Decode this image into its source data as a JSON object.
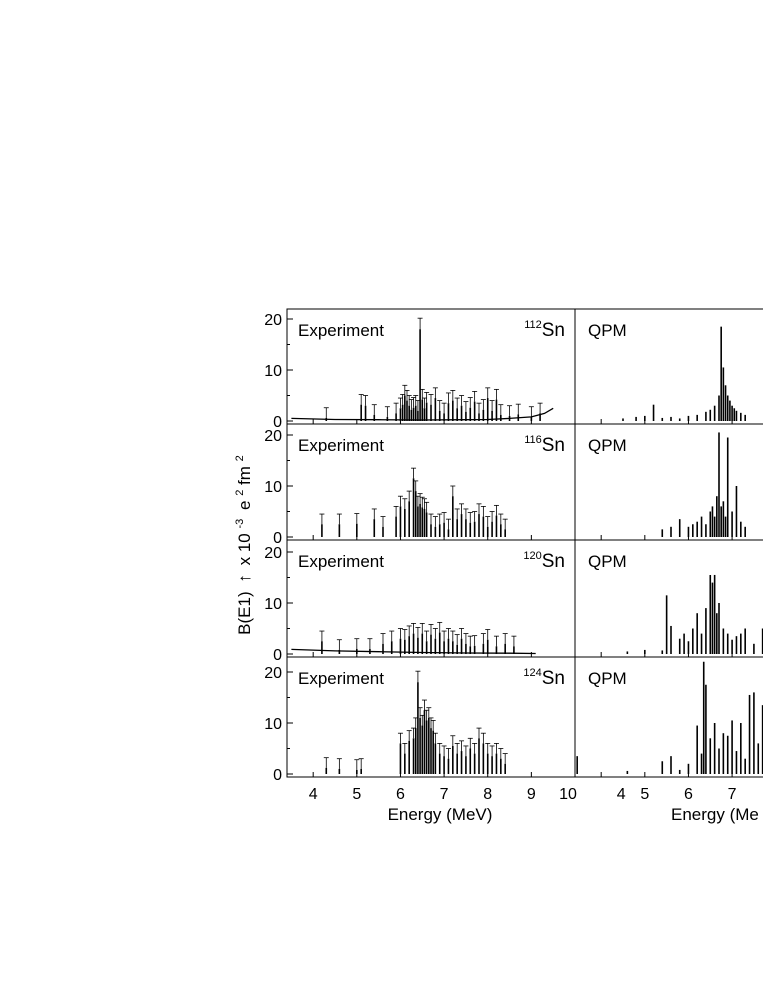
{
  "figure": {
    "ylabel": "B(E1)",
    "ylabel_arrow": "↑",
    "ylabel_tail": "x 10",
    "ylabel_exp": "-3",
    "ylabel_unit1": "e",
    "ylabel_unit1_exp": "2",
    "ylabel_unit2": "fm",
    "ylabel_unit2_exp": "2",
    "left_xlabel": "Energy (MeV)",
    "right_xlabel": "Energy (Me"
  },
  "chart_data": [
    {
      "type": "bar",
      "panel": "experiment",
      "nucleus_mass": "112",
      "nucleus_symbol": "Sn",
      "label": "Experiment",
      "xlim": [
        3.4,
        10.0
      ],
      "ylim": [
        0,
        22
      ],
      "xticks": [
        "4",
        "5",
        "6",
        "7",
        "8",
        "9",
        "10"
      ],
      "yticks": [
        "0",
        "10",
        "20"
      ],
      "x": [
        4.3,
        5.1,
        5.2,
        5.4,
        5.7,
        5.9,
        6.0,
        6.05,
        6.1,
        6.15,
        6.2,
        6.25,
        6.3,
        6.35,
        6.4,
        6.45,
        6.5,
        6.55,
        6.6,
        6.7,
        6.8,
        6.9,
        7.0,
        7.1,
        7.2,
        7.3,
        7.4,
        7.5,
        7.6,
        7.7,
        7.8,
        7.9,
        8.0,
        8.1,
        8.2,
        8.3,
        8.5,
        8.7,
        9.0,
        9.2
      ],
      "values": [
        0.6,
        3.2,
        3.0,
        1.2,
        0.8,
        1.5,
        2.5,
        3.2,
        5.0,
        4.0,
        3.0,
        2.2,
        2.6,
        3.0,
        2.0,
        18.0,
        4.2,
        2.5,
        3.6,
        3.2,
        4.5,
        2.0,
        1.5,
        3.5,
        4.0,
        2.5,
        3.0,
        1.8,
        2.6,
        3.8,
        1.5,
        2.2,
        4.5,
        2.0,
        4.2,
        1.2,
        1.0,
        1.3,
        0.8,
        1.5
      ],
      "threshold_curve": {
        "x": [
          3.5,
          4.5,
          5.5,
          6.5,
          7.5,
          8.0,
          8.5,
          9.0,
          9.3,
          9.5
        ],
        "y": [
          0.5,
          0.3,
          0.25,
          0.2,
          0.25,
          0.3,
          0.5,
          0.8,
          1.5,
          2.5
        ]
      }
    },
    {
      "type": "bar",
      "panel": "qpm",
      "nucleus_mass": "112",
      "nucleus_symbol": "Sn",
      "label": "QPM",
      "xlim": [
        3.4,
        10.0
      ],
      "ylim": [
        0,
        22
      ],
      "x": [
        4.5,
        4.8,
        5.0,
        5.2,
        5.4,
        5.6,
        5.8,
        6.0,
        6.2,
        6.4,
        6.5,
        6.6,
        6.7,
        6.75,
        6.8,
        6.85,
        6.9,
        6.95,
        7.0,
        7.05,
        7.1,
        7.2,
        7.3
      ],
      "values": [
        0.5,
        0.8,
        1.0,
        3.2,
        0.6,
        0.8,
        0.5,
        1.0,
        1.2,
        1.8,
        2.2,
        3.0,
        5.0,
        18.5,
        10.5,
        7.0,
        5.0,
        4.0,
        3.0,
        2.5,
        2.0,
        1.6,
        1.2
      ]
    },
    {
      "type": "bar",
      "panel": "experiment",
      "nucleus_mass": "116",
      "nucleus_symbol": "Sn",
      "label": "Experiment",
      "xlim": [
        3.4,
        10.0
      ],
      "ylim": [
        0,
        22
      ],
      "xticks": [
        "4",
        "5",
        "6",
        "7",
        "8",
        "9",
        "10"
      ],
      "yticks": [
        "0",
        "10",
        "20"
      ],
      "x": [
        4.2,
        4.6,
        5.0,
        5.4,
        5.6,
        5.9,
        6.0,
        6.1,
        6.2,
        6.3,
        6.35,
        6.4,
        6.45,
        6.5,
        6.55,
        6.6,
        6.7,
        6.8,
        6.9,
        7.0,
        7.1,
        7.2,
        7.3,
        7.4,
        7.5,
        7.6,
        7.7,
        7.8,
        7.9,
        8.0,
        8.1,
        8.2,
        8.3,
        8.4
      ],
      "values": [
        2.5,
        2.5,
        2.6,
        3.5,
        2.0,
        4.0,
        6.0,
        5.5,
        7.0,
        11.5,
        9.0,
        6.0,
        6.5,
        5.8,
        5.5,
        4.8,
        2.5,
        2.0,
        2.5,
        2.8,
        1.5,
        8.0,
        3.5,
        4.5,
        3.5,
        2.8,
        3.0,
        4.5,
        4.0,
        2.0,
        3.0,
        4.2,
        2.5,
        1.5
      ]
    },
    {
      "type": "bar",
      "panel": "qpm",
      "nucleus_mass": "116",
      "nucleus_symbol": "Sn",
      "label": "QPM",
      "xlim": [
        3.4,
        10.0
      ],
      "ylim": [
        0,
        22
      ],
      "x": [
        5.4,
        5.6,
        5.8,
        6.0,
        6.1,
        6.2,
        6.3,
        6.4,
        6.5,
        6.55,
        6.6,
        6.65,
        6.7,
        6.75,
        6.8,
        6.85,
        6.9,
        7.0,
        7.1,
        7.2,
        7.3
      ],
      "values": [
        1.5,
        2.0,
        3.5,
        2.0,
        2.5,
        3.0,
        4.0,
        2.5,
        5.0,
        6.0,
        4.0,
        8.0,
        20.5,
        6.0,
        7.0,
        4.0,
        19.5,
        5.0,
        10.0,
        3.0,
        2.0
      ]
    },
    {
      "type": "bar",
      "panel": "experiment",
      "nucleus_mass": "120",
      "nucleus_symbol": "Sn",
      "label": "Experiment",
      "xlim": [
        3.4,
        10.0
      ],
      "ylim": [
        0,
        22
      ],
      "xticks": [
        "4",
        "5",
        "6",
        "7",
        "8",
        "9",
        "10"
      ],
      "yticks": [
        "0",
        "10",
        "20"
      ],
      "x": [
        4.2,
        4.6,
        5.0,
        5.3,
        5.6,
        5.8,
        6.0,
        6.1,
        6.2,
        6.3,
        6.4,
        6.5,
        6.6,
        6.7,
        6.8,
        6.9,
        7.0,
        7.1,
        7.2,
        7.3,
        7.4,
        7.5,
        7.6,
        7.7,
        7.9,
        8.0,
        8.2,
        8.4,
        8.6
      ],
      "values": [
        2.5,
        0.8,
        1.0,
        1.0,
        2.0,
        2.5,
        3.0,
        2.8,
        3.5,
        4.0,
        3.2,
        4.0,
        2.5,
        3.8,
        3.0,
        4.2,
        2.5,
        3.0,
        2.5,
        1.8,
        3.0,
        2.0,
        1.5,
        1.6,
        2.0,
        2.8,
        1.5,
        2.0,
        1.5
      ],
      "threshold_curve": {
        "x": [
          3.5,
          4.5,
          5.5,
          6.5,
          7.5,
          8.5,
          9.1
        ],
        "y": [
          0.9,
          0.6,
          0.45,
          0.3,
          0.2,
          0.15,
          0.1
        ]
      }
    },
    {
      "type": "bar",
      "panel": "qpm",
      "nucleus_mass": "120",
      "nucleus_symbol": "Sn",
      "label": "QPM",
      "xlim": [
        3.4,
        10.0
      ],
      "ylim": [
        0,
        22
      ],
      "x": [
        4.6,
        5.0,
        5.4,
        5.5,
        5.6,
        5.8,
        5.9,
        6.0,
        6.1,
        6.2,
        6.3,
        6.4,
        6.5,
        6.55,
        6.6,
        6.65,
        6.7,
        6.8,
        6.9,
        7.0,
        7.1,
        7.2,
        7.3,
        7.5,
        7.7
      ],
      "values": [
        0.5,
        0.8,
        0.7,
        11.5,
        5.5,
        3.0,
        4.0,
        2.5,
        5.0,
        8.0,
        4.0,
        9.0,
        15.5,
        14.0,
        15.5,
        8.0,
        10.0,
        5.0,
        4.0,
        2.8,
        3.5,
        4.0,
        5.0,
        2.0,
        5.0
      ]
    },
    {
      "type": "bar",
      "panel": "experiment",
      "nucleus_mass": "124",
      "nucleus_symbol": "Sn",
      "label": "Experiment",
      "xlim": [
        3.4,
        10.0
      ],
      "ylim": [
        0,
        22
      ],
      "xticks": [
        "4",
        "5",
        "6",
        "7",
        "8",
        "9",
        "10"
      ],
      "yticks": [
        "0",
        "10",
        "20"
      ],
      "x": [
        4.3,
        4.6,
        5.0,
        5.1,
        6.0,
        6.1,
        6.2,
        6.3,
        6.35,
        6.4,
        6.45,
        6.5,
        6.55,
        6.6,
        6.65,
        6.7,
        6.75,
        6.8,
        6.9,
        7.0,
        7.1,
        7.2,
        7.3,
        7.4,
        7.5,
        7.6,
        7.7,
        7.8,
        7.9,
        8.0,
        8.1,
        8.2,
        8.3,
        8.4
      ],
      "values": [
        1.2,
        1.0,
        0.8,
        1.0,
        6.0,
        4.0,
        6.5,
        7.0,
        9.0,
        18.0,
        11.0,
        9.5,
        12.5,
        10.5,
        11.0,
        9.0,
        8.5,
        6.0,
        4.0,
        3.5,
        3.0,
        5.5,
        4.0,
        4.5,
        3.5,
        5.0,
        4.0,
        7.0,
        6.0,
        4.0,
        3.5,
        4.0,
        3.0,
        2.0
      ]
    },
    {
      "type": "bar",
      "panel": "qpm",
      "nucleus_mass": "124",
      "nucleus_symbol": "Sn",
      "label": "QPM",
      "xlim": [
        3.4,
        10.0
      ],
      "ylim": [
        0,
        22
      ],
      "x": [
        3.45,
        4.6,
        5.4,
        5.6,
        5.8,
        6.0,
        6.2,
        6.3,
        6.35,
        6.4,
        6.5,
        6.6,
        6.7,
        6.8,
        6.9,
        7.0,
        7.1,
        7.2,
        7.3,
        7.4,
        7.5,
        7.6,
        7.7,
        7.8
      ],
      "values": [
        3.5,
        0.6,
        2.5,
        3.5,
        0.8,
        2.0,
        9.5,
        4.0,
        22.0,
        17.5,
        7.0,
        10.0,
        5.0,
        8.0,
        7.5,
        10.5,
        4.5,
        10.0,
        3.0,
        15.5,
        16.0,
        6.0,
        13.5,
        5.0
      ]
    }
  ]
}
